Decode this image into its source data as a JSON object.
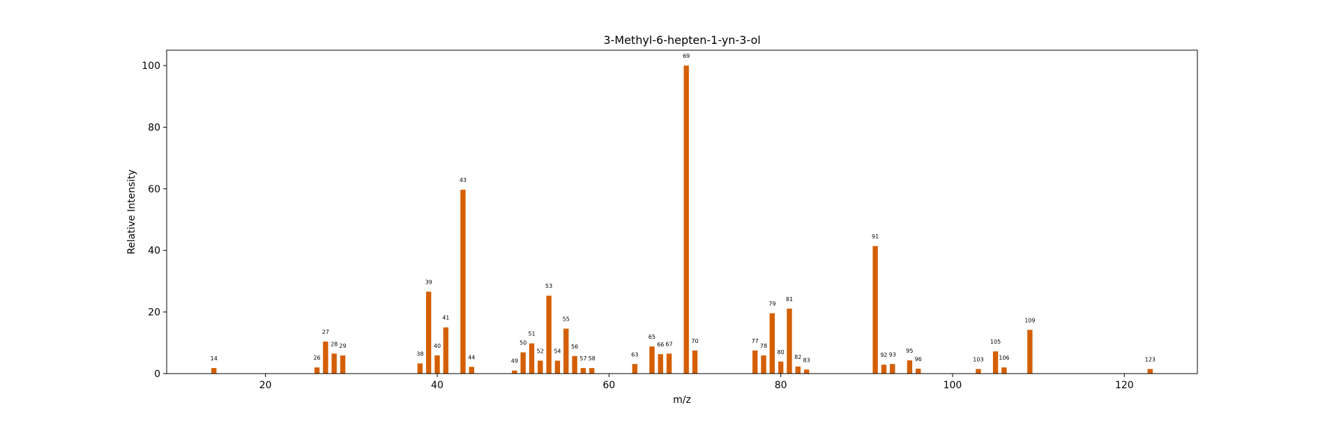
{
  "chart_data": {
    "type": "bar",
    "title": "3-Methyl-6-hepten-1-yn-3-ol",
    "xlabel": "m/z",
    "ylabel": "Relative Intensity",
    "xlim": [
      8.5,
      128.5
    ],
    "ylim": [
      0,
      105
    ],
    "xticks": [
      20,
      40,
      60,
      80,
      100,
      120
    ],
    "yticks": [
      0,
      20,
      40,
      60,
      80,
      100
    ],
    "grid": false,
    "bar_color": "#d45f00",
    "series": [
      {
        "x": [
          14,
          26,
          27,
          28,
          29,
          38,
          39,
          40,
          41,
          43,
          44,
          49,
          50,
          51,
          52,
          53,
          54,
          55,
          56,
          57,
          58,
          63,
          65,
          66,
          67,
          69,
          70,
          77,
          78,
          79,
          80,
          81,
          82,
          83,
          91,
          92,
          93,
          95,
          96,
          103,
          105,
          106,
          109,
          123
        ],
        "values": [
          1.8,
          2.0,
          10.4,
          6.5,
          5.9,
          3.3,
          26.6,
          5.9,
          15.0,
          59.7,
          2.2,
          1.0,
          6.9,
          9.8,
          4.2,
          25.3,
          4.2,
          14.6,
          5.7,
          1.8,
          1.8,
          3.1,
          8.8,
          6.3,
          6.5,
          100.0,
          7.5,
          7.5,
          5.9,
          19.6,
          3.9,
          21.1,
          2.3,
          1.3,
          41.4,
          2.9,
          3.1,
          4.3,
          1.6,
          1.5,
          7.2,
          2.0,
          14.2,
          1.5
        ],
        "labels": [
          "14",
          "26",
          "27",
          "28",
          "29",
          "38",
          "39",
          "40",
          "41",
          "43",
          "44",
          "49",
          "50",
          "51",
          "52",
          "53",
          "54",
          "55",
          "56",
          "57",
          "58",
          "63",
          "65",
          "66",
          "67",
          "69",
          "70",
          "77",
          "78",
          "79",
          "80",
          "81",
          "82",
          "83",
          "91",
          "92",
          "93",
          "95",
          "96",
          "103",
          "105",
          "106",
          "109",
          "123"
        ]
      }
    ]
  }
}
